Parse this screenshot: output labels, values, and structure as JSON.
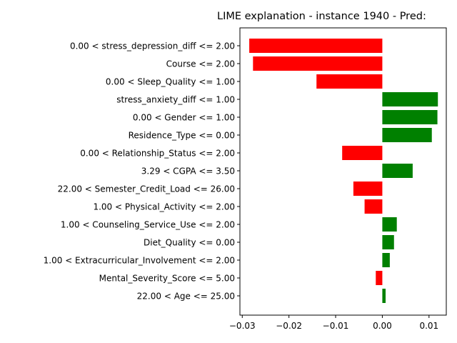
{
  "chart_data": {
    "type": "bar",
    "orientation": "horizontal",
    "title": "LIME explanation - instance 1940 - Pred:",
    "xlabel": "",
    "ylabel": "",
    "xlim": [
      -0.0305,
      0.0137
    ],
    "xticks": [
      -0.03,
      -0.02,
      -0.01,
      0.0,
      0.01
    ],
    "xtick_labels": [
      "−0.03",
      "−0.02",
      "−0.01",
      "0.00",
      "0.01"
    ],
    "grid": false,
    "categories": [
      "0.00 < stress_depression_diff <= 2.00",
      "Course <= 2.00",
      "0.00 < Sleep_Quality <= 1.00",
      "stress_anxiety_diff <= 1.00",
      "0.00 < Gender <= 1.00",
      "Residence_Type <= 0.00",
      "0.00 < Relationship_Status <= 2.00",
      "3.29 < CGPA <= 3.50",
      "22.00 < Semester_Credit_Load <= 26.00",
      "1.00 < Physical_Activity <= 2.00",
      "1.00 < Counseling_Service_Use <= 2.00",
      "Diet_Quality <= 0.00",
      "1.00 < Extracurricular_Involvement <= 2.00",
      "Mental_Severity_Score <= 5.00",
      "22.00 < Age <= 25.00"
    ],
    "values": [
      -0.0285,
      -0.0277,
      -0.0141,
      0.0119,
      0.0118,
      0.0106,
      -0.0086,
      0.0065,
      -0.0062,
      -0.0038,
      0.0031,
      0.0025,
      0.0016,
      -0.0014,
      0.0007
    ],
    "colors": {
      "positive": "#008000",
      "negative": "#ff0000"
    }
  }
}
